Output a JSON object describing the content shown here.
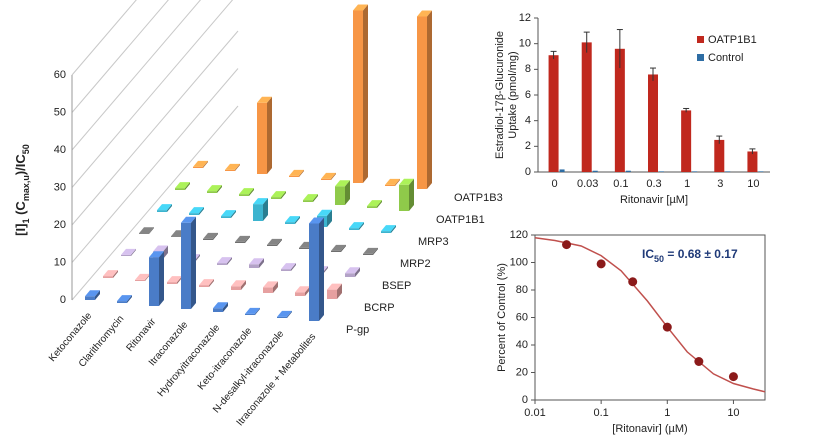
{
  "chart_data": [
    {
      "type": "bar3d",
      "ylabel_parts": [
        {
          "text": "[I]"
        },
        {
          "text": "1",
          "sub": true
        },
        {
          "text": " (C"
        },
        {
          "text": "max,u",
          "sub": true
        },
        {
          "text": ")/IC"
        },
        {
          "text": "50",
          "sub": true
        }
      ],
      "categories": [
        "Ketoconazole",
        "Clarithromycin",
        "Ritonavir",
        "Itraconazole",
        "Hydroxyitraconazole",
        "Keto-itraconazole",
        "N-desalkyl-itraconazole",
        "Itraconazole + Metabolites"
      ],
      "series": [
        {
          "name": "P-gp",
          "color": "#4a7cc7",
          "values": [
            1,
            0.5,
            13,
            23,
            1,
            0.3,
            0.3,
            26
          ]
        },
        {
          "name": "BCRP",
          "color": "#e6a0a0",
          "values": [
            0.5,
            0.3,
            0.5,
            0.5,
            1,
            1.5,
            1,
            2.5
          ]
        },
        {
          "name": "BSEP",
          "color": "#b3a2c7",
          "values": [
            0.3,
            2,
            0.5,
            0.5,
            1,
            0.5,
            0.5,
            1
          ]
        },
        {
          "name": "MRP2",
          "color": "#6f6f6f",
          "values": [
            0.2,
            0.2,
            0.3,
            0.3,
            0.3,
            0.3,
            0.3,
            0.3
          ]
        },
        {
          "name": "MRP3",
          "color": "#3cb4cf",
          "values": [
            0.5,
            0.5,
            0.5,
            4.5,
            0.5,
            3,
            0.5,
            0.5
          ]
        },
        {
          "name": "OATP1B1",
          "color": "#8fca4a",
          "values": [
            0.5,
            0.5,
            0.5,
            0.5,
            0.5,
            5,
            0.5,
            7
          ]
        },
        {
          "name": "OATP1B3",
          "color": "#f79646",
          "values": [
            0.3,
            0.3,
            19,
            0.3,
            0.3,
            46,
            0.3,
            46
          ]
        }
      ],
      "ylim": [
        0,
        60
      ],
      "yticks": [
        0,
        10,
        20,
        30,
        40,
        50,
        60
      ],
      "grid": true
    },
    {
      "type": "bar",
      "ylabel": [
        "Estradiol-17β-Glucuronide",
        "Uptake (pmol/mg)"
      ],
      "xlabel": "Ritonavir [µM]",
      "categories": [
        "0",
        "0.03",
        "0.1",
        "0.3",
        "1",
        "3",
        "10"
      ],
      "series": [
        {
          "name": "OATP1B1",
          "color": "#c0281e",
          "values": [
            9.1,
            10.1,
            9.6,
            7.6,
            4.8,
            2.5,
            1.6
          ],
          "errors": [
            0.3,
            0.8,
            1.5,
            0.5,
            0.15,
            0.3,
            0.2
          ]
        },
        {
          "name": "Control",
          "color": "#2e6da4",
          "values": [
            0.2,
            0.1,
            0.1,
            0.05,
            0.05,
            0.05,
            0.05
          ]
        }
      ],
      "ylim": [
        0,
        12
      ],
      "yticks": [
        0,
        2,
        4,
        6,
        8,
        10,
        12
      ],
      "legend": "upper right"
    },
    {
      "type": "scatter",
      "ylabel": "Percent of Control (%)",
      "xlabel": "[Ritonavir] (µM)",
      "annotation": {
        "text": "IC",
        "sub": "50",
        "rest": " = 0.68 ± 0.17",
        "color": "#1f3a78"
      },
      "x": [
        0.03,
        0.1,
        0.3,
        1,
        3,
        10
      ],
      "values": [
        113,
        99,
        86,
        53,
        28,
        17
      ],
      "color": "#8b1a1a",
      "curve": {
        "x": [
          0.01,
          0.02,
          0.05,
          0.1,
          0.2,
          0.5,
          1,
          2,
          5,
          10,
          20,
          30
        ],
        "y": [
          118,
          116,
          112,
          105,
          94,
          72,
          53,
          35,
          19,
          12,
          8,
          6
        ],
        "color": "#c0504d"
      },
      "log_x": true,
      "xlim": [
        0.01,
        30
      ],
      "xticks": [
        0.01,
        0.1,
        1,
        10
      ],
      "ylim": [
        0,
        120
      ],
      "yticks": [
        0,
        20,
        40,
        60,
        80,
        100,
        120
      ]
    }
  ]
}
